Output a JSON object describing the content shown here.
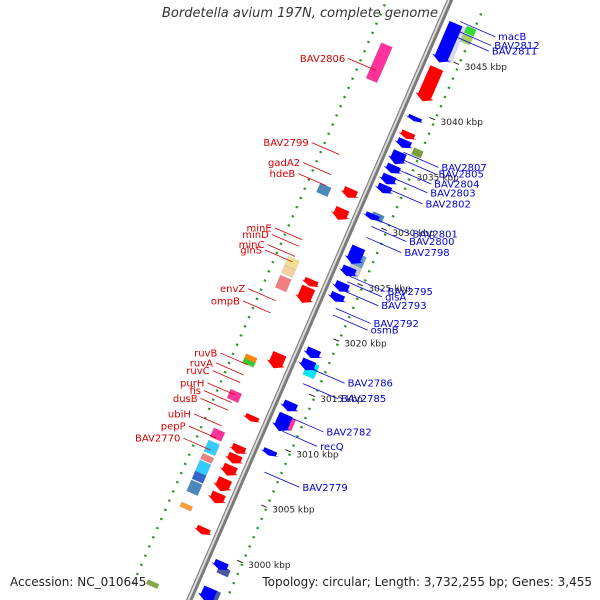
{
  "title": "Bordetella avium 197N, complete genome",
  "footer": {
    "accession": "Accession: NC_010645",
    "topology": "Topology: circular; Length: 3,732,255 bp; Genes: 3,455"
  },
  "colors": {
    "backbone": "#9a9a9a",
    "tick": "#2f8f2f",
    "left_label": "#d40000",
    "right_label": "#0000cc",
    "forward": "#ff0000",
    "reverse": "#0000ff"
  },
  "scale": [
    {
      "label": "3045 kbp",
      "kbp": 3045
    },
    {
      "label": "3040 kbp",
      "kbp": 3040
    },
    {
      "label": "3035 kbp",
      "kbp": 3035
    },
    {
      "label": "3030 kbp",
      "kbp": 3030
    },
    {
      "label": "3025 kbp",
      "kbp": 3025
    },
    {
      "label": "3020 kbp",
      "kbp": 3020
    },
    {
      "label": "3015 kbp",
      "kbp": 3015
    },
    {
      "label": "3010 kbp",
      "kbp": 3010
    },
    {
      "label": "3005 kbp",
      "kbp": 3005
    },
    {
      "label": "3000 kbp",
      "kbp": 3000
    }
  ],
  "labels_right": [
    {
      "text": "macB",
      "kbp": 3048.3
    },
    {
      "text": "BAV2812",
      "kbp": 3047.5
    },
    {
      "text": "BAV2811",
      "kbp": 3047.0
    },
    {
      "text": "BAV2807",
      "kbp": 3036.5
    },
    {
      "text": "BAV2805",
      "kbp": 3035.9
    },
    {
      "text": "BAV2804",
      "kbp": 3035.0
    },
    {
      "text": "BAV2803",
      "kbp": 3034.2
    },
    {
      "text": "BAV2802",
      "kbp": 3033.2
    },
    {
      "text": "BAV2801",
      "kbp": 3030.5
    },
    {
      "text": "BAV2800",
      "kbp": 3029.8
    },
    {
      "text": "BAV2798",
      "kbp": 3028.8
    },
    {
      "text": "BAV2795",
      "kbp": 3025.3
    },
    {
      "text": "glsA",
      "kbp": 3024.8
    },
    {
      "text": "BAV2793",
      "kbp": 3024.0
    },
    {
      "text": "BAV2792",
      "kbp": 3022.4
    },
    {
      "text": "osmB",
      "kbp": 3021.8
    },
    {
      "text": "BAV2786",
      "kbp": 3017.0
    },
    {
      "text": "BAV2785",
      "kbp": 3015.6
    },
    {
      "text": "BAV2782",
      "kbp": 3012.6
    },
    {
      "text": "recQ",
      "kbp": 3011.3
    },
    {
      "text": "BAV2779",
      "kbp": 3007.6
    }
  ],
  "labels_left": [
    {
      "text": "BAV2806",
      "kbp": 3041.8
    },
    {
      "text": "BAV2799",
      "kbp": 3034.2
    },
    {
      "text": "gadA2",
      "kbp": 3032.4
    },
    {
      "text": "hdeB",
      "kbp": 3031.4
    },
    {
      "text": "minE",
      "kbp": 3026.5
    },
    {
      "text": "minD",
      "kbp": 3025.9
    },
    {
      "text": "minC",
      "kbp": 3025.0
    },
    {
      "text": "glnS",
      "kbp": 3024.5
    },
    {
      "text": "envZ",
      "kbp": 3021.0
    },
    {
      "text": "ompB",
      "kbp": 3019.9
    },
    {
      "text": "ruvB",
      "kbp": 3015.2
    },
    {
      "text": "ruvA",
      "kbp": 3014.3
    },
    {
      "text": "ruvC",
      "kbp": 3013.6
    },
    {
      "text": "purH",
      "kbp": 3012.5
    },
    {
      "text": "fis",
      "kbp": 3011.8
    },
    {
      "text": "dusB",
      "kbp": 3011.1
    },
    {
      "text": "ubiH",
      "kbp": 3009.7
    },
    {
      "text": "pepP",
      "kbp": 3008.6
    },
    {
      "text": "BAV2770",
      "kbp": 3007.5
    }
  ],
  "genes": [
    {
      "start": 3048.0,
      "end": 3044.5,
      "strand": -1,
      "color": "#0000ff"
    },
    {
      "start": 3044.0,
      "end": 3041.0,
      "strand": -1,
      "color": "#ff0000"
    },
    {
      "start": 3039.6,
      "end": 3039.2,
      "strand": -1,
      "color": "#0000ff"
    },
    {
      "start": 3038.2,
      "end": 3037.6,
      "strand": -1,
      "color": "#ff0000"
    },
    {
      "start": 3037.5,
      "end": 3036.8,
      "strand": -1,
      "color": "#0000ff"
    },
    {
      "start": 3036.4,
      "end": 3035.3,
      "strand": -1,
      "color": "#0000ff"
    },
    {
      "start": 3035.2,
      "end": 3034.5,
      "strand": -1,
      "color": "#0000ff"
    },
    {
      "start": 3034.3,
      "end": 3033.5,
      "strand": -1,
      "color": "#0000ff"
    },
    {
      "start": 3033.4,
      "end": 3032.7,
      "strand": -1,
      "color": "#0000ff"
    },
    {
      "start": 3032.0,
      "end": 3031.2,
      "strand": 1,
      "color": "#ff0000"
    },
    {
      "start": 3030.8,
      "end": 3030.3,
      "strand": -1,
      "color": "#0000ff"
    },
    {
      "start": 3030.2,
      "end": 3029.2,
      "strand": 1,
      "color": "#ff0000"
    },
    {
      "start": 3027.8,
      "end": 3026.3,
      "strand": -1,
      "color": "#0000ff"
    },
    {
      "start": 3026.0,
      "end": 3025.2,
      "strand": -1,
      "color": "#0000ff"
    },
    {
      "start": 3024.6,
      "end": 3023.8,
      "strand": -1,
      "color": "#0000ff"
    },
    {
      "start": 3023.6,
      "end": 3022.9,
      "strand": -1,
      "color": "#0000ff"
    },
    {
      "start": 3023.8,
      "end": 3023.2,
      "strand": 1,
      "color": "#ff0000"
    },
    {
      "start": 3023.1,
      "end": 3021.7,
      "strand": 1,
      "color": "#ff0000"
    },
    {
      "start": 3018.6,
      "end": 3017.8,
      "strand": -1,
      "color": "#0000ff"
    },
    {
      "start": 3017.6,
      "end": 3016.7,
      "strand": -1,
      "color": "#0000ff"
    },
    {
      "start": 3017.1,
      "end": 3015.8,
      "strand": 1,
      "color": "#ff0000"
    },
    {
      "start": 3013.8,
      "end": 3013.0,
      "strand": -1,
      "color": "#0000ff"
    },
    {
      "start": 3012.7,
      "end": 3011.2,
      "strand": -1,
      "color": "#0000ff"
    },
    {
      "start": 3011.5,
      "end": 3011.0,
      "strand": 1,
      "color": "#ff0000"
    },
    {
      "start": 3009.5,
      "end": 3009.0,
      "strand": -1,
      "color": "#0000ff"
    },
    {
      "start": 3008.8,
      "end": 3008.1,
      "strand": 1,
      "color": "#ff0000"
    },
    {
      "start": 3008.0,
      "end": 3007.2,
      "strand": 1,
      "color": "#ff0000"
    },
    {
      "start": 3007.0,
      "end": 3006.1,
      "strand": 1,
      "color": "#ff0000"
    },
    {
      "start": 3005.8,
      "end": 3004.7,
      "strand": 1,
      "color": "#ff0000"
    },
    {
      "start": 3004.5,
      "end": 3003.6,
      "strand": 1,
      "color": "#ff0000"
    },
    {
      "start": 3001.4,
      "end": 3000.8,
      "strand": 1,
      "color": "#ff0000"
    },
    {
      "start": 2999.4,
      "end": 2998.7,
      "strand": -1,
      "color": "#0000ff"
    },
    {
      "start": 2997.0,
      "end": 2995.8,
      "strand": -1,
      "color": "#0000ff"
    }
  ],
  "cogs": [
    {
      "start": 3048.0,
      "end": 3044.8,
      "ring": "R",
      "color": "#d8d8ff"
    },
    {
      "start": 3048.2,
      "end": 3047.6,
      "ring": "R2",
      "color": "#33dd33"
    },
    {
      "start": 3047.5,
      "end": 3046.8,
      "ring": "R2",
      "color": "#a8d060"
    },
    {
      "start": 3044.1,
      "end": 3040.9,
      "ring": "L",
      "color": "#ff3399"
    },
    {
      "start": 3037.2,
      "end": 3036.6,
      "ring": "R2",
      "color": "#7aa030"
    },
    {
      "start": 3031.4,
      "end": 3030.6,
      "ring": "L",
      "color": "#4a88bb"
    },
    {
      "start": 3031.0,
      "end": 3030.4,
      "ring": "R",
      "color": "#4a88bb"
    },
    {
      "start": 3027.3,
      "end": 3026.3,
      "ring": "R",
      "color": "#6699cc"
    },
    {
      "start": 3026.3,
      "end": 3025.4,
      "ring": "R",
      "color": "#c8c8c8"
    },
    {
      "start": 3024.8,
      "end": 3024.0,
      "ring": "L",
      "color": "#f0e090"
    },
    {
      "start": 3024.0,
      "end": 3023.3,
      "ring": "L",
      "color": "#f5d0a0"
    },
    {
      "start": 3023.1,
      "end": 3022.0,
      "ring": "L",
      "color": "#f08080"
    },
    {
      "start": 3017.5,
      "end": 3016.3,
      "ring": "R",
      "color": "#00e8ff"
    },
    {
      "start": 3016.0,
      "end": 3015.6,
      "ring": "L",
      "color": "#ff8800"
    },
    {
      "start": 3015.6,
      "end": 3015.2,
      "ring": "L",
      "color": "#33cc33"
    },
    {
      "start": 3012.8,
      "end": 3012.0,
      "ring": "L",
      "color": "#ff3399"
    },
    {
      "start": 3012.6,
      "end": 3011.6,
      "ring": "R",
      "color": "#ff3399"
    },
    {
      "start": 3009.3,
      "end": 3008.5,
      "ring": "L",
      "color": "#ff3399"
    },
    {
      "start": 3008.2,
      "end": 3007.2,
      "ring": "L",
      "color": "#33ccff"
    },
    {
      "start": 3007.0,
      "end": 3006.5,
      "ring": "L",
      "color": "#f08080"
    },
    {
      "start": 3006.4,
      "end": 3005.4,
      "ring": "L",
      "color": "#33ccff"
    },
    {
      "start": 3005.4,
      "end": 3004.7,
      "ring": "L",
      "color": "#3366cc"
    },
    {
      "start": 3004.6,
      "end": 3003.6,
      "ring": "L",
      "color": "#4a88bb"
    },
    {
      "start": 3002.6,
      "end": 3002.2,
      "ring": "L",
      "color": "#ff9933"
    },
    {
      "start": 2999.0,
      "end": 2998.4,
      "ring": "R",
      "color": "#4a5a9a"
    },
    {
      "start": 2997.0,
      "end": 2995.8,
      "ring": "R",
      "color": "#4a5a9a"
    },
    {
      "start": 2995.6,
      "end": 2995.2,
      "ring": "L",
      "color": "#88aa44"
    }
  ]
}
